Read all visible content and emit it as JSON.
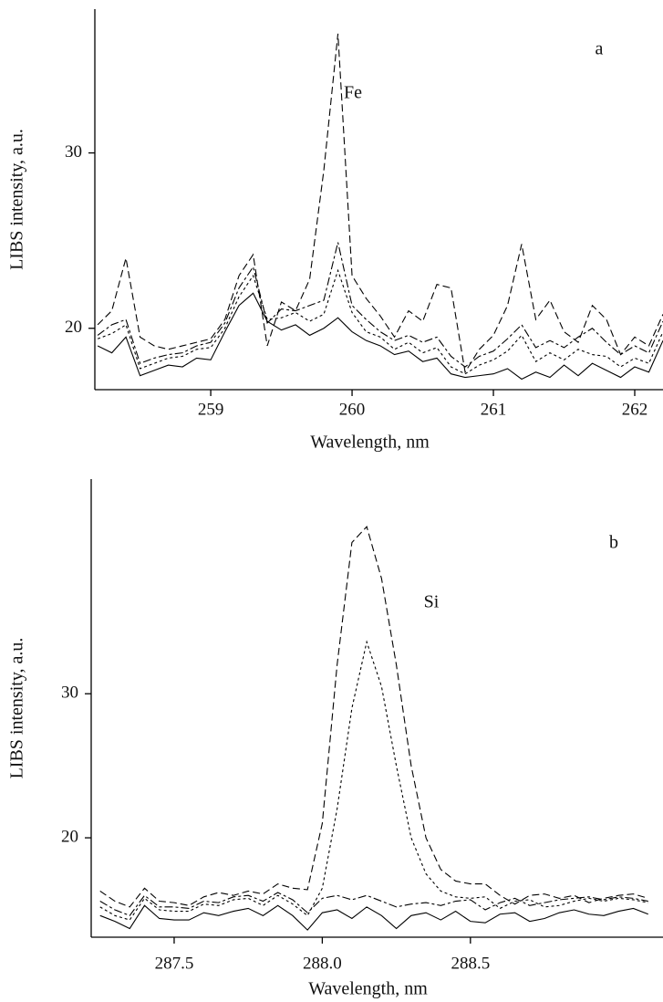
{
  "chart_data": [
    {
      "type": "line",
      "x_label": "Wavelength, nm",
      "y_label": "LIBS intensity, a.u.",
      "annotations": [
        "a",
        "Fe"
      ],
      "xlim": [
        258.18,
        262.2
      ],
      "xticks": [
        259,
        260,
        261,
        262
      ],
      "ylim": [
        16.5,
        38.2
      ],
      "yticks": [
        20,
        30
      ],
      "grid": false,
      "x": [
        258.2,
        258.3,
        258.4,
        258.5,
        258.6,
        258.7,
        258.8,
        258.9,
        259.0,
        259.1,
        259.2,
        259.3,
        259.4,
        259.5,
        259.6,
        259.7,
        259.8,
        259.9,
        260.0,
        260.1,
        260.2,
        260.3,
        260.4,
        260.5,
        260.6,
        260.7,
        260.8,
        260.9,
        261.0,
        261.1,
        261.2,
        261.3,
        261.4,
        261.5,
        261.6,
        261.7,
        261.8,
        261.9,
        262.0,
        262.1,
        262.2
      ],
      "series": [
        {
          "color": "#000000",
          "dash": "solid",
          "values": [
            19.0,
            18.6,
            19.5,
            17.3,
            17.6,
            17.9,
            17.8,
            18.3,
            18.2,
            19.8,
            21.3,
            22.0,
            20.4,
            19.9,
            20.2,
            19.6,
            20.0,
            20.6,
            19.8,
            19.3,
            19.0,
            18.5,
            18.7,
            18.1,
            18.3,
            17.4,
            17.2,
            17.3,
            17.4,
            17.7,
            17.1,
            17.5,
            17.2,
            17.9,
            17.3,
            18.0,
            17.6,
            17.2,
            17.8,
            17.5,
            19.3
          ]
        },
        {
          "color": "#000000",
          "dash": "dotted",
          "values": [
            19.4,
            19.7,
            20.2,
            17.7,
            18.0,
            18.3,
            18.4,
            18.8,
            18.9,
            20.0,
            21.8,
            23.0,
            20.5,
            20.6,
            20.9,
            20.4,
            20.8,
            23.3,
            20.9,
            19.8,
            19.5,
            18.8,
            19.2,
            18.6,
            18.9,
            17.8,
            17.4,
            17.9,
            18.2,
            18.7,
            19.6,
            18.1,
            18.6,
            18.2,
            18.8,
            18.5,
            18.4,
            17.8,
            18.3,
            18.0,
            19.8
          ]
        },
        {
          "color": "#000000",
          "dash": "dashdot",
          "values": [
            19.6,
            20.2,
            20.5,
            18.0,
            18.3,
            18.5,
            18.6,
            19.0,
            19.2,
            20.3,
            22.3,
            23.5,
            20.3,
            21.1,
            21.0,
            21.3,
            21.6,
            24.9,
            21.3,
            20.5,
            19.8,
            19.3,
            19.6,
            19.2,
            19.5,
            18.4,
            17.8,
            18.4,
            18.7,
            19.4,
            20.2,
            18.9,
            19.3,
            18.9,
            19.5,
            20.0,
            19.2,
            18.5,
            19.0,
            18.6,
            20.4
          ]
        },
        {
          "color": "#000000",
          "dash": "dashed",
          "values": [
            20.2,
            21.0,
            24.0,
            19.5,
            19.0,
            18.8,
            19.0,
            19.2,
            19.4,
            20.5,
            23.0,
            24.2,
            19.0,
            21.5,
            21.0,
            22.8,
            29.0,
            36.8,
            23.0,
            21.7,
            20.7,
            19.5,
            21.0,
            20.4,
            22.5,
            22.3,
            17.5,
            18.8,
            19.6,
            21.3,
            24.8,
            20.5,
            21.6,
            19.8,
            19.2,
            21.3,
            20.5,
            18.5,
            19.5,
            19.0,
            20.8
          ]
        }
      ]
    },
    {
      "type": "line",
      "x_label": "Wavelength, nm",
      "y_label": "LIBS intensity, a.u.",
      "annotations": [
        "b",
        "Si"
      ],
      "xlim": [
        287.22,
        289.15
      ],
      "xticks": [
        {
          "value": 287.5,
          "label": "287.5"
        },
        {
          "value": 288,
          "label": "288.0"
        },
        {
          "value": 288.5,
          "label": "288.5"
        }
      ],
      "ylim": [
        13.1,
        44.9
      ],
      "yticks": [
        20,
        30
      ],
      "grid": false,
      "x": [
        287.25,
        287.3,
        287.35,
        287.4,
        287.45,
        287.5,
        287.55,
        287.6,
        287.65,
        287.7,
        287.75,
        287.8,
        287.85,
        287.9,
        287.95,
        288.0,
        288.05,
        288.1,
        288.15,
        288.2,
        288.25,
        288.3,
        288.35,
        288.4,
        288.45,
        288.5,
        288.55,
        288.6,
        288.65,
        288.7,
        288.75,
        288.8,
        288.85,
        288.9,
        288.95,
        289.0,
        289.05,
        289.1
      ],
      "series": [
        {
          "color": "#000000",
          "dash": "solid",
          "values": [
            14.6,
            14.2,
            13.7,
            15.3,
            14.4,
            14.3,
            14.3,
            14.8,
            14.6,
            14.9,
            15.1,
            14.6,
            15.3,
            14.6,
            13.6,
            14.8,
            15.0,
            14.4,
            15.2,
            14.6,
            13.7,
            14.6,
            14.8,
            14.3,
            14.9,
            14.2,
            14.1,
            14.7,
            14.8,
            14.2,
            14.4,
            14.8,
            15.0,
            14.7,
            14.6,
            14.9,
            15.1,
            14.7
          ]
        },
        {
          "color": "#000000",
          "dash": "dotted",
          "values": [
            15.2,
            14.6,
            14.3,
            15.8,
            15.0,
            14.9,
            14.9,
            15.4,
            15.3,
            15.7,
            15.8,
            15.3,
            16.0,
            15.4,
            14.6,
            16.5,
            22.0,
            29.0,
            33.6,
            30.5,
            25.0,
            20.0,
            17.5,
            16.3,
            15.9,
            15.8,
            15.9,
            15.1,
            15.6,
            15.7,
            15.2,
            15.3,
            15.6,
            15.8,
            15.6,
            15.8,
            15.7,
            15.5
          ]
        },
        {
          "color": "#000000",
          "dash": "dashdot",
          "values": [
            15.6,
            15.0,
            14.6,
            16.0,
            15.2,
            15.2,
            15.1,
            15.6,
            15.5,
            15.9,
            16.0,
            15.6,
            16.2,
            15.7,
            14.8,
            15.8,
            16.0,
            15.7,
            16.0,
            15.6,
            15.2,
            15.4,
            15.5,
            15.3,
            15.6,
            15.7,
            15.0,
            15.5,
            15.8,
            15.3,
            15.5,
            15.7,
            15.8,
            15.9,
            15.7,
            15.9,
            15.8,
            15.6
          ]
        },
        {
          "color": "#000000",
          "dash": "dashed",
          "values": [
            16.3,
            15.6,
            15.2,
            16.5,
            15.6,
            15.5,
            15.3,
            15.9,
            16.2,
            16.0,
            16.3,
            16.1,
            16.8,
            16.5,
            16.4,
            21.0,
            32.0,
            40.5,
            41.6,
            38.0,
            32.0,
            25.0,
            20.0,
            17.8,
            17.0,
            16.8,
            16.8,
            16.0,
            15.4,
            16.0,
            16.1,
            15.8,
            16.0,
            15.5,
            15.8,
            16.0,
            16.1,
            15.8
          ]
        }
      ]
    }
  ]
}
